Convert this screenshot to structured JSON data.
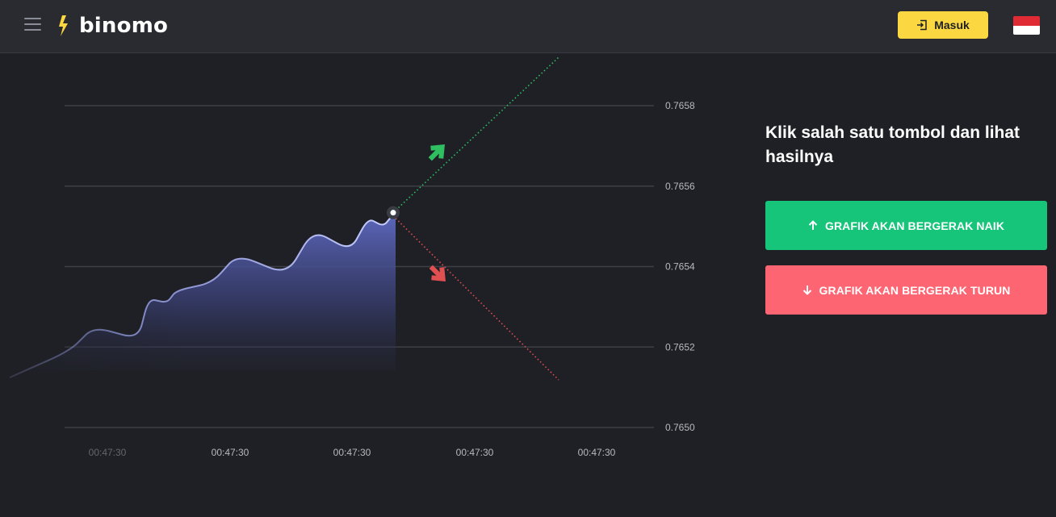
{
  "header": {
    "menu_icon": "hamburger-menu-icon",
    "logo_text": "binomo",
    "login_label": "Masuk",
    "login_icon": "sign-in-icon",
    "flag_icon": "indonesia-flag-icon",
    "login_color": "#fbd741"
  },
  "chart_data": {
    "type": "area",
    "y_ticks": [
      "0.7658",
      "0.7656",
      "0.7654",
      "0.7652",
      "0.7650"
    ],
    "x_ticks": [
      "00:47:30",
      "00:47:30",
      "00:47:30",
      "00:47:30",
      "00:47:30"
    ],
    "ylim": [
      0.765,
      0.7658
    ],
    "grid": true,
    "series": [
      {
        "values": [
          0.76519,
          0.76525,
          0.76522,
          0.76532,
          0.76531,
          0.76534,
          0.76536,
          0.76543,
          0.76538,
          0.76549,
          0.76544,
          0.76552,
          0.7655,
          0.76553,
          0.76553
        ]
      }
    ],
    "projection_up_color": "#2fbf61",
    "projection_down_color": "#e05050",
    "area_color": "#6e7bd8"
  },
  "panel": {
    "title": "Klik salah satu tombol dan lihat hasilnya",
    "up_button_label": "GRAFIK AKAN BERGERAK NAIK",
    "down_button_label": "GRAFIK AKAN BERGERAK TURUN",
    "up_color": "#16c57a",
    "down_color": "#fd6572"
  }
}
